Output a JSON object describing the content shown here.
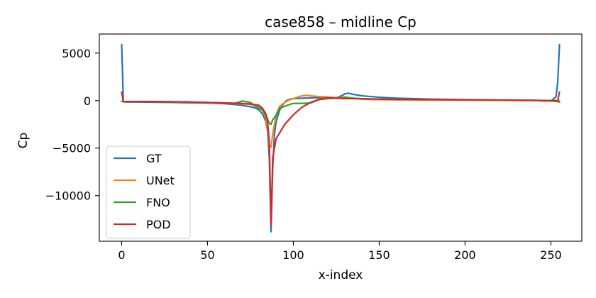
{
  "chart_data": {
    "type": "line",
    "title": "case858 – midline Cp",
    "xlabel": "x-index",
    "ylabel": "Cp",
    "xlim": [
      -13,
      268
    ],
    "ylim": [
      -14800,
      7000
    ],
    "xticks": [
      0,
      50,
      100,
      150,
      200,
      250
    ],
    "yticks": [
      5000,
      0,
      -5000,
      -10000
    ],
    "ytick_labels": [
      "5000",
      "0",
      "−5000",
      "−10000"
    ],
    "grid": false,
    "legend_position": "lower-left",
    "series": [
      {
        "name": "GT",
        "color": "#1f77b4",
        "x": [
          0,
          1,
          2,
          10,
          20,
          30,
          40,
          50,
          55,
          60,
          65,
          70,
          75,
          78,
          80,
          82,
          84,
          85,
          86,
          87,
          88,
          89,
          90,
          92,
          94,
          96,
          98,
          100,
          105,
          110,
          115,
          120,
          125,
          128,
          130,
          132,
          135,
          140,
          150,
          160,
          180,
          200,
          220,
          240,
          250,
          253,
          254,
          255
        ],
        "y": [
          5900,
          -100,
          -150,
          -150,
          -180,
          -200,
          -230,
          -250,
          -280,
          -330,
          -400,
          -500,
          -650,
          -800,
          -1000,
          -1400,
          -2200,
          -3200,
          -6000,
          -13800,
          -7000,
          -3500,
          -2200,
          -1000,
          -400,
          0,
          150,
          200,
          250,
          280,
          320,
          350,
          300,
          500,
          700,
          780,
          650,
          500,
          350,
          250,
          150,
          100,
          50,
          0,
          -50,
          400,
          2000,
          5900
        ]
      },
      {
        "name": "UNet",
        "color": "#ff7f0e",
        "x": [
          0,
          1,
          10,
          20,
          30,
          40,
          50,
          60,
          65,
          70,
          75,
          80,
          82,
          84,
          85,
          86,
          87,
          88,
          89,
          90,
          92,
          95,
          98,
          100,
          103,
          105,
          108,
          110,
          113,
          115,
          118,
          120,
          123,
          126,
          130,
          135,
          140,
          150,
          160,
          180,
          200,
          220,
          240,
          250,
          254,
          255
        ],
        "y": [
          -50,
          -100,
          -100,
          -120,
          -150,
          -180,
          -200,
          -250,
          -300,
          -350,
          -400,
          -600,
          -1000,
          -1800,
          -3000,
          -4800,
          -4900,
          -3500,
          -2500,
          -1500,
          -600,
          -200,
          100,
          200,
          400,
          500,
          550,
          500,
          450,
          420,
          400,
          380,
          250,
          300,
          400,
          250,
          150,
          100,
          80,
          60,
          50,
          30,
          0,
          -30,
          0,
          0
        ]
      },
      {
        "name": "FNO",
        "color": "#2ca02c",
        "x": [
          0,
          1,
          10,
          20,
          30,
          40,
          50,
          60,
          65,
          68,
          70,
          72,
          75,
          78,
          80,
          82,
          84,
          86,
          87,
          88,
          89,
          90,
          92,
          95,
          98,
          100,
          105,
          110,
          115,
          120,
          125,
          130,
          135,
          140,
          150,
          160,
          180,
          200,
          220,
          240,
          250,
          254,
          255
        ],
        "y": [
          -100,
          -100,
          -120,
          -130,
          -150,
          -180,
          -200,
          -250,
          -300,
          -200,
          -50,
          -100,
          -200,
          -600,
          -800,
          -1000,
          -1500,
          -2400,
          -2500,
          -2000,
          -1800,
          -1500,
          -800,
          -600,
          -400,
          -300,
          -300,
          -250,
          100,
          200,
          250,
          300,
          250,
          200,
          150,
          120,
          100,
          80,
          50,
          20,
          -50,
          -100,
          -150
        ]
      },
      {
        "name": "POD",
        "color": "#d62728",
        "x": [
          0,
          1,
          10,
          20,
          30,
          40,
          50,
          60,
          65,
          70,
          75,
          80,
          82,
          84,
          85,
          86,
          87,
          88,
          90,
          95,
          100,
          105,
          110,
          115,
          120,
          125,
          130,
          135,
          140,
          150,
          160,
          180,
          200,
          220,
          240,
          250,
          254,
          255
        ],
        "y": [
          900,
          -100,
          -100,
          -100,
          -120,
          -150,
          -200,
          -250,
          -270,
          -300,
          -350,
          -500,
          -800,
          -1400,
          -2200,
          -4500,
          -13000,
          -6000,
          -4000,
          -2500,
          -1500,
          -700,
          -200,
          150,
          300,
          250,
          200,
          200,
          180,
          150,
          120,
          100,
          80,
          60,
          30,
          0,
          0,
          900
        ]
      }
    ]
  }
}
